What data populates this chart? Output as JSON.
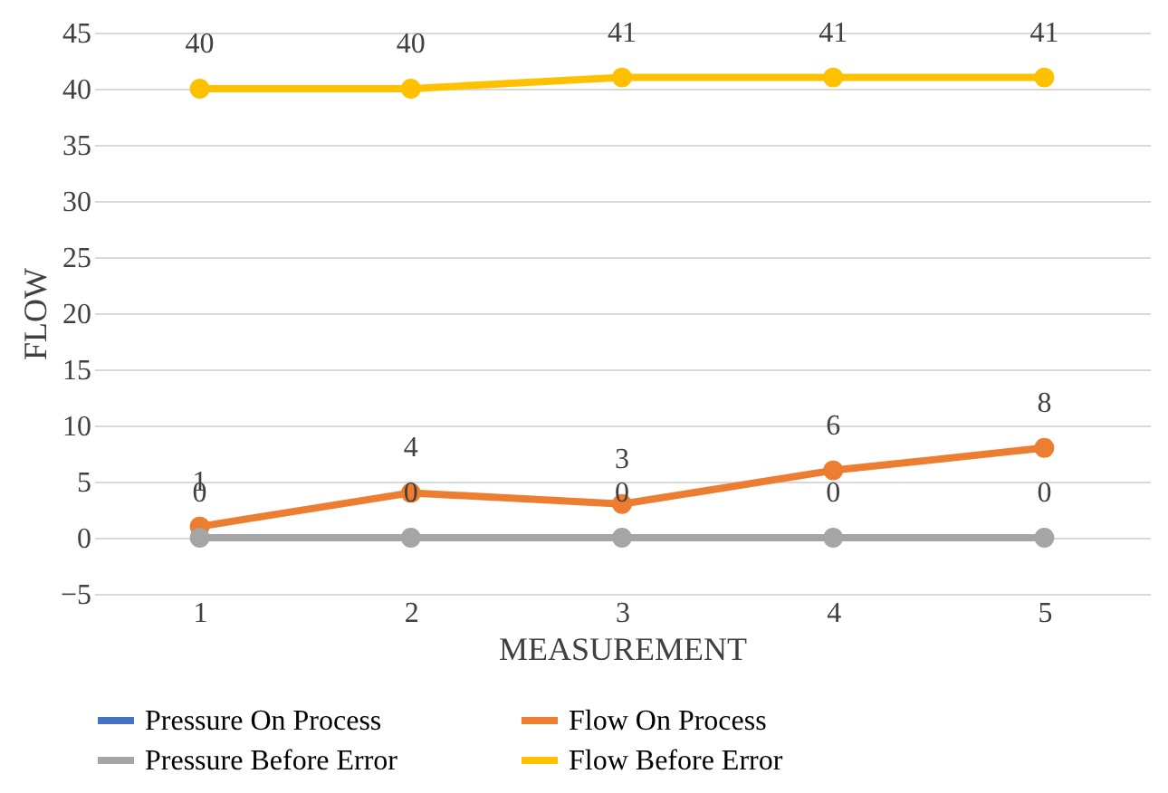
{
  "chart_data": {
    "type": "line",
    "xlabel": "MEASUREMENT",
    "ylabel": "FLOW",
    "categories": [
      "1",
      "2",
      "3",
      "4",
      "5"
    ],
    "series": [
      {
        "name": "Pressure On Process",
        "color": "#4472c4",
        "values": [
          null,
          null,
          null,
          null,
          null
        ]
      },
      {
        "name": "Flow On Process",
        "color": "#ed7d31",
        "values": [
          1,
          4,
          3,
          6,
          8
        ]
      },
      {
        "name": "Pressure Before Error",
        "color": "#a5a5a5",
        "values": [
          0,
          0,
          0,
          0,
          0
        ]
      },
      {
        "name": "Flow Before Error",
        "color": "#ffc000",
        "values": [
          40,
          40,
          41,
          41,
          41
        ]
      }
    ],
    "ylim": [
      -5,
      45
    ],
    "yticks": [
      -5,
      0,
      5,
      10,
      15,
      20,
      25,
      30,
      35,
      40,
      45
    ],
    "grid": "y",
    "legend": "bottom",
    "marker": "circle",
    "line_style": "solid",
    "data_labels": true
  }
}
